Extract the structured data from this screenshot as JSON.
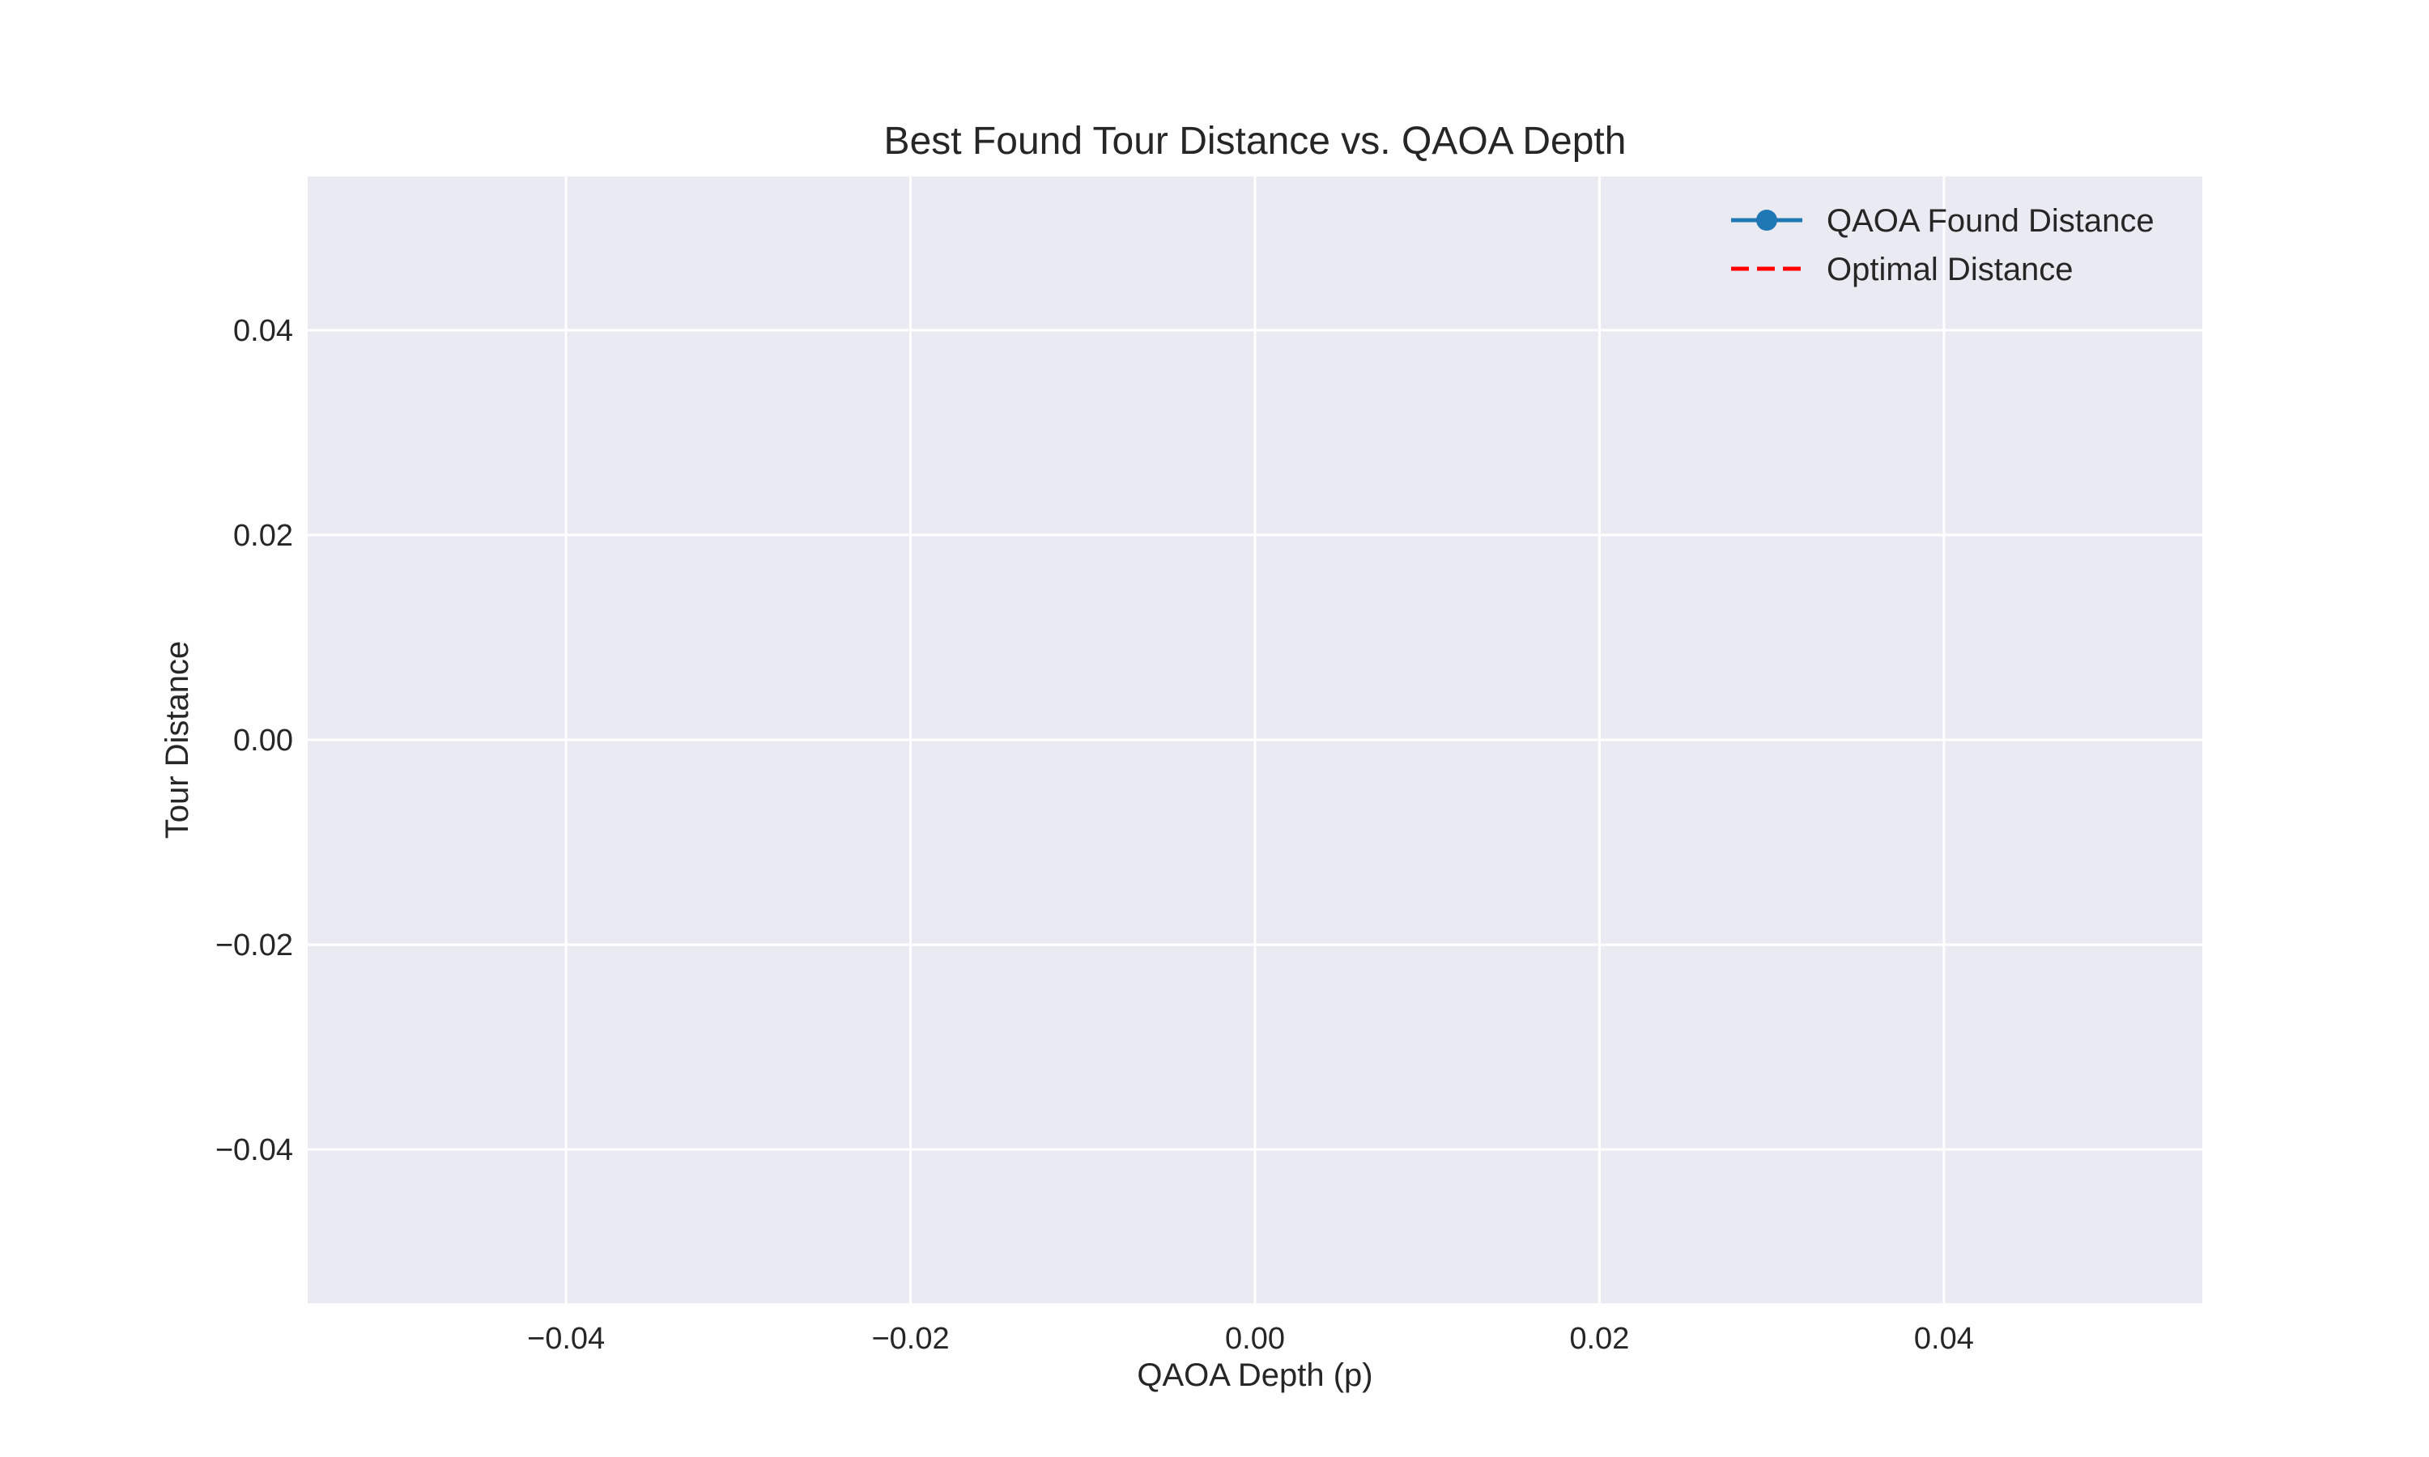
{
  "chart_data": {
    "type": "line",
    "title": "Best Found Tour Distance vs. QAOA Depth",
    "xlabel": "QAOA Depth (p)",
    "ylabel": "Tour Distance",
    "xlim": [
      -0.055,
      0.055
    ],
    "ylim": [
      -0.055,
      0.055
    ],
    "xticks": [
      -0.04,
      -0.02,
      0.0,
      0.02,
      0.04
    ],
    "yticks": [
      -0.04,
      -0.02,
      0.0,
      0.02,
      0.04
    ],
    "xtick_labels": [
      "−0.04",
      "−0.02",
      "0.00",
      "0.02",
      "0.04"
    ],
    "ytick_labels": [
      "−0.04",
      "−0.02",
      "0.00",
      "0.02",
      "0.04"
    ],
    "grid": true,
    "legend_position": "top-right",
    "series": [
      {
        "name": "QAOA Found Distance",
        "style": "solid-marker",
        "color": "#1f77b4",
        "x": [],
        "y": []
      },
      {
        "name": "Optimal Distance",
        "style": "dashed",
        "color": "#ff0000",
        "x": [],
        "y": []
      }
    ],
    "colors": {
      "plot_background": "#eaeaf2",
      "grid": "#ffffff",
      "text": "#262626"
    }
  }
}
